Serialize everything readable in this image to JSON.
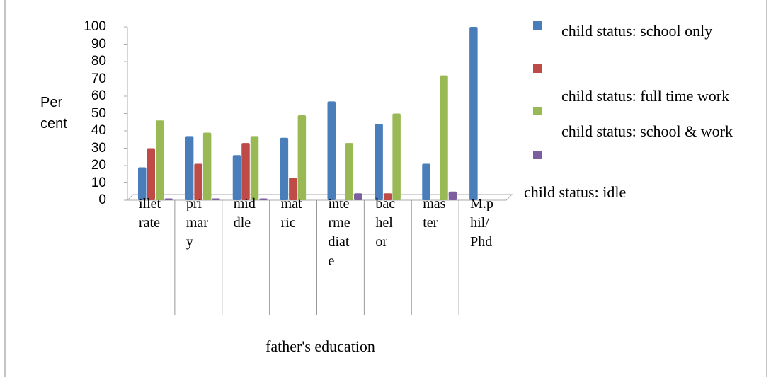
{
  "chart_data": {
    "type": "bar",
    "y_label": "Percent",
    "x_label": "father's education",
    "categories": [
      "illetrate",
      "primary",
      "middle",
      "matric",
      "intermediate",
      "bachelor",
      "master",
      "M.phil/Phd"
    ],
    "series": [
      {
        "name": "child status: school only",
        "color": "#4a7ebb",
        "values": [
          19,
          37,
          26,
          36,
          57,
          44,
          21,
          100
        ]
      },
      {
        "name": "child status: full time work",
        "color": "#be4b48",
        "values": [
          30,
          21,
          33,
          13,
          0,
          4,
          0,
          0
        ]
      },
      {
        "name": "child status: school & work",
        "color": "#98b954",
        "values": [
          46,
          39,
          37,
          49,
          33,
          50,
          72,
          0
        ]
      },
      {
        "name": "child status: idle",
        "color": "#7d5fa0",
        "values": [
          1,
          1,
          1,
          0,
          4,
          0,
          5,
          0
        ]
      }
    ],
    "ylim": [
      0,
      100
    ],
    "yticks": [
      0,
      10,
      20,
      30,
      40,
      50,
      60,
      70,
      80,
      90,
      100
    ]
  }
}
